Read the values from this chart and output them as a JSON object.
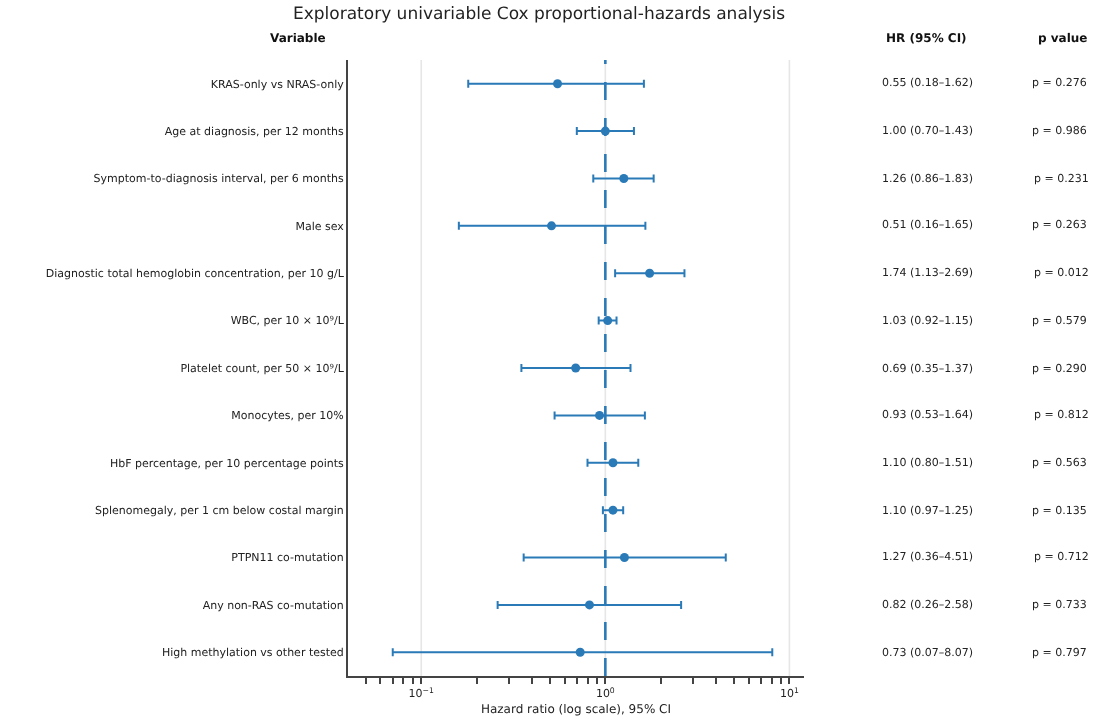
{
  "chart_data": {
    "type": "scatter",
    "orientation": "horizontal",
    "title": "Exploratory univariable Cox proportional-hazards analysis",
    "xlabel": "Hazard ratio (log scale), 95% CI",
    "ylabel": "Variable",
    "categories": [
      "KRAS-only vs NRAS-only",
      "Age at diagnosis, per 12 months",
      "Symptom-to-diagnosis interval, per 6 months",
      "Male sex",
      "Diagnostic total hemoglobin concentration, per 10 g/L",
      "WBC, per 10 × 10⁹/L",
      "Platelet count, per 50 × 10⁹/L",
      "Monocytes, per 10%",
      "HbF percentage, per 10 percentage points",
      "Splenomegaly, per 1 cm below costal margin",
      "PTPN11 co-mutation",
      "Any non-RAS co-mutation",
      "High methylation vs other tested"
    ],
    "values": [
      0.55,
      1.0,
      1.26,
      0.51,
      1.74,
      1.03,
      0.69,
      0.93,
      1.1,
      1.1,
      1.27,
      0.82,
      0.73
    ],
    "errors": [
      [
        0.18,
        1.62
      ],
      [
        0.7,
        1.43
      ],
      [
        0.86,
        1.83
      ],
      [
        0.16,
        1.65
      ],
      [
        1.13,
        2.69
      ],
      [
        0.92,
        1.15
      ],
      [
        0.35,
        1.37
      ],
      [
        0.53,
        1.64
      ],
      [
        0.8,
        1.51
      ],
      [
        0.97,
        1.25
      ],
      [
        0.36,
        4.51
      ],
      [
        0.26,
        2.58
      ],
      [
        0.07,
        8.07
      ]
    ],
    "value_labels": [
      "0.55 (0.18–1.62)",
      "1.00 (0.70–1.43)",
      "1.26 (0.86–1.83)",
      "0.51 (0.16–1.65)",
      "1.74 (1.13–2.69)",
      "1.03 (0.92–1.15)",
      "0.69 (0.35–1.37)",
      "0.93 (0.53–1.64)",
      "1.10 (0.80–1.51)",
      "1.10 (0.97–1.25)",
      "1.27 (0.36–4.51)",
      "0.82 (0.26–2.58)",
      "0.73 (0.07–8.07)"
    ],
    "color": "#2a7ab8",
    "marker": "circle",
    "log": "x",
    "xlim": [
      0.04,
      12
    ],
    "xticks": [
      {
        "value": 0.05,
        "label": null
      },
      {
        "value": 0.06,
        "label": null
      },
      {
        "value": 0.07,
        "label": null
      },
      {
        "value": 0.08,
        "label": null
      },
      {
        "value": 0.09,
        "label": null
      },
      {
        "value": 0.1,
        "label": "10$^{−1}$"
      },
      {
        "value": 0.2,
        "label": null
      },
      {
        "value": 0.3,
        "label": null
      },
      {
        "value": 0.4,
        "label": null
      },
      {
        "value": 0.5,
        "label": null
      },
      {
        "value": 0.6,
        "label": null
      },
      {
        "value": 0.7,
        "label": null
      },
      {
        "value": 0.8,
        "label": null
      },
      {
        "value": 0.9,
        "label": null
      },
      {
        "value": 1,
        "label": "10$^{0}$"
      },
      {
        "value": 2,
        "label": null
      },
      {
        "value": 3,
        "label": null
      },
      {
        "value": 4,
        "label": null
      },
      {
        "value": 5,
        "label": null
      },
      {
        "value": 6,
        "label": null
      },
      {
        "value": 7,
        "label": null
      },
      {
        "value": 8,
        "label": null
      },
      {
        "value": 9,
        "label": null
      },
      {
        "value": 10,
        "label": "10$^{1}$"
      }
    ],
    "grid": "x",
    "ref_lines": [
      {
        "axis": "x",
        "value": 1,
        "color": "#2a7ab8",
        "line_style": "dashed"
      }
    ],
    "annotations": [
      "HR (95% CI)",
      "p value",
      "p = 0.276",
      "p = 0.986",
      "p = 0.231",
      "p = 0.263",
      "p = 0.012",
      "p = 0.579",
      "p = 0.290",
      "p = 0.812",
      "p = 0.563",
      "p = 0.135",
      "p = 0.712",
      "p = 0.733",
      "p = 0.797"
    ]
  }
}
